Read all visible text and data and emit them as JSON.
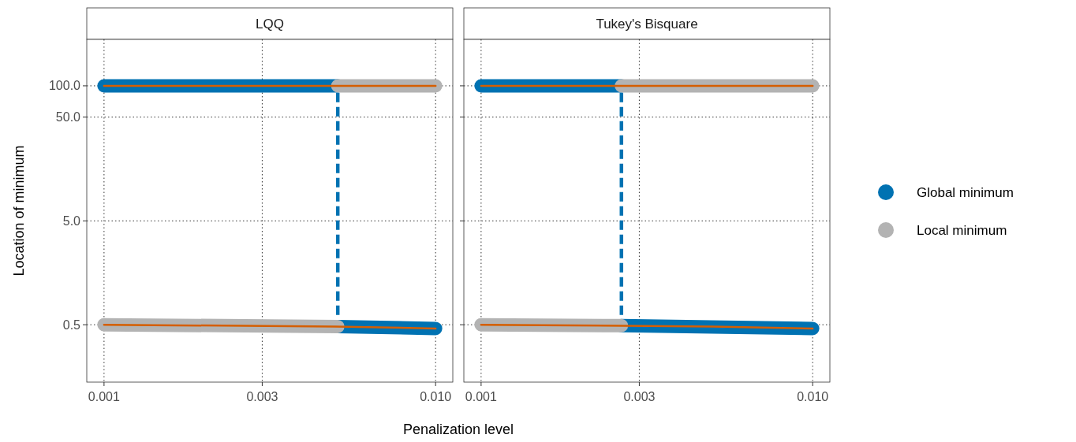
{
  "chart_data": [
    {
      "type": "line",
      "title": "LQQ",
      "ylabel": "Location of minimum",
      "xlabel": "Penalization level",
      "log": "xy",
      "grid": true,
      "legend": false,
      "xlim": [
        0.000887,
        0.01127
      ],
      "xticks": [
        {
          "value": 0.001,
          "label": "0.001"
        },
        {
          "value": 0.003,
          "label": "0.003"
        },
        {
          "value": 0.01,
          "label": "0.010"
        }
      ],
      "ylim": [
        0.14,
        280
      ],
      "yticks": [
        {
          "value": 0.5,
          "label": "0.5"
        },
        {
          "value": 5,
          "label": "5.0"
        },
        {
          "value": 50,
          "label": "50.0"
        },
        {
          "value": 100,
          "label": "100.0"
        }
      ],
      "series": [
        {
          "color": "#0072b2",
          "x": [
            0.001,
            0.00507
          ],
          "values": [
            100,
            100
          ]
        },
        {
          "color": "#0072b2",
          "x": [
            0.00507,
            0.01
          ],
          "values": [
            0.48,
            0.46
          ]
        },
        {
          "color": "#b3b3b3",
          "x": [
            0.001,
            0.00507
          ],
          "values": [
            0.5,
            0.48
          ]
        },
        {
          "color": "#b3b3b3",
          "x": [
            0.00507,
            0.01
          ],
          "values": [
            100,
            100
          ]
        },
        {
          "color": "#d55e00",
          "x": [
            0.001,
            0.01
          ],
          "values": [
            100,
            100
          ]
        },
        {
          "color": "#d55e00",
          "x": [
            0.001,
            0.005,
            0.01
          ],
          "values": [
            0.5,
            0.48,
            0.46
          ]
        },
        {
          "color": "#0072b2",
          "line_style": "dashed",
          "x": [
            0.00507,
            0.00507
          ],
          "values": [
            0.62,
            90
          ]
        }
      ]
    },
    {
      "type": "line",
      "title": "Tukey's Bisquare",
      "log": "xy",
      "grid": true,
      "legend": "right",
      "tick_labels": "x",
      "xlim": [
        0.000887,
        0.01127
      ],
      "xticks": [
        {
          "value": 0.001,
          "label": "0.001"
        },
        {
          "value": 0.003,
          "label": "0.003"
        },
        {
          "value": 0.01,
          "label": "0.010"
        }
      ],
      "ylim": [
        0.14,
        280
      ],
      "yticks": [
        {
          "value": 0.5,
          "label": null
        },
        {
          "value": 5,
          "label": null
        },
        {
          "value": 50,
          "label": null
        },
        {
          "value": 100,
          "label": null
        }
      ],
      "series": [
        {
          "name": "Global minimum",
          "color": "#0072b2",
          "x": [
            0.001,
            0.00265
          ],
          "values": [
            100,
            100
          ]
        },
        {
          "color": "#0072b2",
          "x": [
            0.00265,
            0.01
          ],
          "values": [
            0.49,
            0.46
          ]
        },
        {
          "name": "Local minimum",
          "color": "#b3b3b3",
          "x": [
            0.001,
            0.00265
          ],
          "values": [
            0.5,
            0.49
          ]
        },
        {
          "color": "#b3b3b3",
          "x": [
            0.00265,
            0.01
          ],
          "values": [
            100,
            100
          ]
        },
        {
          "color": "#d55e00",
          "x": [
            0.001,
            0.01
          ],
          "values": [
            100,
            100
          ]
        },
        {
          "color": "#d55e00",
          "x": [
            0.001,
            0.005,
            0.01
          ],
          "values": [
            0.5,
            0.48,
            0.46
          ]
        },
        {
          "color": "#0072b2",
          "line_style": "dashed",
          "x": [
            0.00265,
            0.00265
          ],
          "values": [
            0.62,
            90
          ]
        }
      ]
    }
  ]
}
